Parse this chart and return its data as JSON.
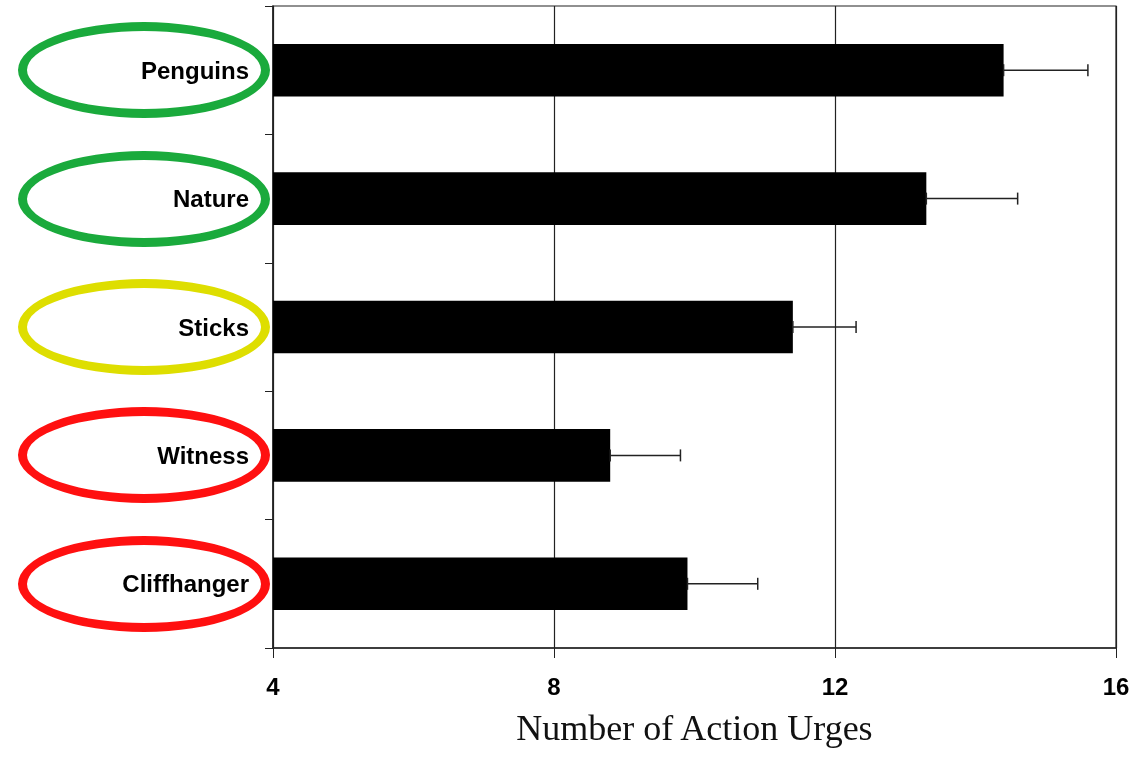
{
  "chart_data": {
    "type": "bar",
    "orientation": "horizontal",
    "xlabel": "Number of Action Urges",
    "categories": [
      "Penguins",
      "Nature",
      "Sticks",
      "Witness",
      "Cliffhanger"
    ],
    "values": [
      14.4,
      13.3,
      11.4,
      8.8,
      9.9
    ],
    "errors": [
      [
        14.4,
        15.6
      ],
      [
        13.3,
        14.6
      ],
      [
        11.4,
        12.3
      ],
      [
        8.8,
        9.8
      ],
      [
        9.9,
        10.9
      ]
    ],
    "color": "#000000",
    "xlim": [
      4,
      16
    ],
    "xticks": [
      4,
      8,
      12,
      16
    ],
    "grid": "x"
  }
}
